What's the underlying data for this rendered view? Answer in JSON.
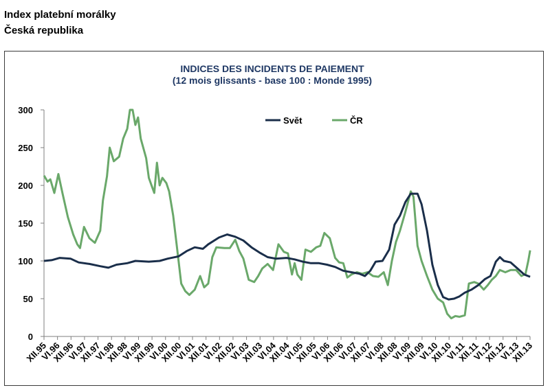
{
  "heading": {
    "line1": "Index platební morálky",
    "line2": "Česká republika"
  },
  "chart_data": {
    "type": "line",
    "title": "INDICES DES INCIDENTS DE PAIEMENT",
    "subtitle": "(12 mois glissants - base 100 : Monde 1995)",
    "ylim": [
      0,
      300
    ],
    "yticks": [
      0,
      50,
      100,
      150,
      200,
      250,
      300
    ],
    "xlim": [
      1995.917,
      2013.917
    ],
    "xtick_labels": [
      "XII.95",
      "VI.96",
      "XII.96",
      "VI.97",
      "XII.97",
      "VI.98",
      "XII.98",
      "VI.99",
      "XII.99",
      "VI.00",
      "XII.00",
      "VI.01",
      "XII.01",
      "VI.02",
      "XII.02",
      "VI.03",
      "XII.03",
      "VI.04",
      "XII.04",
      "VI.05",
      "XII.05",
      "VI.06",
      "XII.06",
      "VI.07",
      "XII.07",
      "VI.08",
      "XII.08",
      "VI.09",
      "XII.09",
      "VI.10",
      "XII.10",
      "VI.11",
      "XII.11",
      "VI.12",
      "XII.12",
      "VI.13",
      "XII.13"
    ],
    "grid": false,
    "legend_position": "top-center",
    "series": [
      {
        "name": "Svět",
        "color": "#1a2e4a",
        "points": [
          [
            1995.92,
            100
          ],
          [
            1996.2,
            101
          ],
          [
            1996.5,
            104
          ],
          [
            1996.9,
            103
          ],
          [
            1997.2,
            98
          ],
          [
            1997.6,
            96
          ],
          [
            1998.0,
            93
          ],
          [
            1998.3,
            91
          ],
          [
            1998.6,
            95
          ],
          [
            1999.0,
            97
          ],
          [
            1999.3,
            100
          ],
          [
            1999.8,
            99
          ],
          [
            2000.2,
            100
          ],
          [
            2000.5,
            103
          ],
          [
            2000.9,
            106
          ],
          [
            2001.2,
            113
          ],
          [
            2001.5,
            118
          ],
          [
            2001.8,
            116
          ],
          [
            2002.0,
            122
          ],
          [
            2002.4,
            131
          ],
          [
            2002.7,
            135
          ],
          [
            2003.0,
            132
          ],
          [
            2003.3,
            127
          ],
          [
            2003.6,
            118
          ],
          [
            2003.9,
            111
          ],
          [
            2004.2,
            105
          ],
          [
            2004.5,
            103
          ],
          [
            2004.9,
            104
          ],
          [
            2005.2,
            102
          ],
          [
            2005.5,
            99
          ],
          [
            2005.8,
            97
          ],
          [
            2006.1,
            97
          ],
          [
            2006.4,
            95
          ],
          [
            2006.7,
            92
          ],
          [
            2007.0,
            87
          ],
          [
            2007.3,
            85
          ],
          [
            2007.6,
            83
          ],
          [
            2007.8,
            80
          ],
          [
            2008.0,
            87
          ],
          [
            2008.2,
            99
          ],
          [
            2008.45,
            100
          ],
          [
            2008.7,
            115
          ],
          [
            2008.9,
            148
          ],
          [
            2009.1,
            160
          ],
          [
            2009.3,
            178
          ],
          [
            2009.5,
            189
          ],
          [
            2009.75,
            189
          ],
          [
            2009.9,
            175
          ],
          [
            2010.1,
            140
          ],
          [
            2010.3,
            95
          ],
          [
            2010.5,
            68
          ],
          [
            2010.7,
            52
          ],
          [
            2010.9,
            49
          ],
          [
            2011.1,
            50
          ],
          [
            2011.3,
            53
          ],
          [
            2011.5,
            58
          ],
          [
            2011.75,
            62
          ],
          [
            2012.0,
            68
          ],
          [
            2012.25,
            76
          ],
          [
            2012.45,
            80
          ],
          [
            2012.65,
            99
          ],
          [
            2012.8,
            105
          ],
          [
            2012.95,
            100
          ],
          [
            2013.2,
            98
          ],
          [
            2013.45,
            90
          ],
          [
            2013.7,
            82
          ],
          [
            2013.92,
            79
          ]
        ]
      },
      {
        "name": "ČR",
        "color": "#6aa86a",
        "points": [
          [
            1995.92,
            213
          ],
          [
            1996.05,
            205
          ],
          [
            1996.15,
            208
          ],
          [
            1996.3,
            190
          ],
          [
            1996.45,
            215
          ],
          [
            1996.6,
            190
          ],
          [
            1996.8,
            158
          ],
          [
            1997.0,
            135
          ],
          [
            1997.15,
            122
          ],
          [
            1997.25,
            117
          ],
          [
            1997.4,
            145
          ],
          [
            1997.6,
            130
          ],
          [
            1997.8,
            124
          ],
          [
            1998.0,
            140
          ],
          [
            1998.1,
            180
          ],
          [
            1998.25,
            212
          ],
          [
            1998.35,
            250
          ],
          [
            1998.5,
            232
          ],
          [
            1998.7,
            238
          ],
          [
            1998.85,
            262
          ],
          [
            1999.0,
            275
          ],
          [
            1999.1,
            300
          ],
          [
            1999.2,
            300
          ],
          [
            1999.3,
            280
          ],
          [
            1999.4,
            290
          ],
          [
            1999.5,
            262
          ],
          [
            1999.7,
            236
          ],
          [
            1999.8,
            210
          ],
          [
            1999.9,
            200
          ],
          [
            2000.0,
            190
          ],
          [
            2000.1,
            230
          ],
          [
            2000.2,
            200
          ],
          [
            2000.3,
            210
          ],
          [
            2000.45,
            203
          ],
          [
            2000.55,
            192
          ],
          [
            2000.7,
            160
          ],
          [
            2000.85,
            115
          ],
          [
            2001.0,
            70
          ],
          [
            2001.15,
            60
          ],
          [
            2001.3,
            55
          ],
          [
            2001.5,
            62
          ],
          [
            2001.7,
            80
          ],
          [
            2001.85,
            65
          ],
          [
            2002.0,
            70
          ],
          [
            2002.15,
            105
          ],
          [
            2002.3,
            118
          ],
          [
            2002.6,
            117
          ],
          [
            2002.8,
            117
          ],
          [
            2003.0,
            128
          ],
          [
            2003.15,
            113
          ],
          [
            2003.3,
            103
          ],
          [
            2003.5,
            75
          ],
          [
            2003.7,
            72
          ],
          [
            2003.85,
            80
          ],
          [
            2004.0,
            90
          ],
          [
            2004.2,
            96
          ],
          [
            2004.4,
            88
          ],
          [
            2004.6,
            122
          ],
          [
            2004.8,
            112
          ],
          [
            2004.95,
            110
          ],
          [
            2005.1,
            82
          ],
          [
            2005.2,
            97
          ],
          [
            2005.3,
            82
          ],
          [
            2005.45,
            75
          ],
          [
            2005.6,
            115
          ],
          [
            2005.8,
            112
          ],
          [
            2006.0,
            118
          ],
          [
            2006.15,
            120
          ],
          [
            2006.3,
            137
          ],
          [
            2006.5,
            130
          ],
          [
            2006.7,
            104
          ],
          [
            2006.85,
            98
          ],
          [
            2007.0,
            97
          ],
          [
            2007.15,
            78
          ],
          [
            2007.3,
            82
          ],
          [
            2007.5,
            85
          ],
          [
            2007.7,
            83
          ],
          [
            2007.9,
            85
          ],
          [
            2008.1,
            80
          ],
          [
            2008.3,
            79
          ],
          [
            2008.5,
            85
          ],
          [
            2008.65,
            68
          ],
          [
            2008.8,
            100
          ],
          [
            2008.95,
            125
          ],
          [
            2009.1,
            140
          ],
          [
            2009.3,
            165
          ],
          [
            2009.5,
            192
          ],
          [
            2009.6,
            185
          ],
          [
            2009.75,
            120
          ],
          [
            2009.9,
            100
          ],
          [
            2010.1,
            80
          ],
          [
            2010.3,
            62
          ],
          [
            2010.5,
            50
          ],
          [
            2010.7,
            45
          ],
          [
            2010.85,
            30
          ],
          [
            2011.0,
            24
          ],
          [
            2011.15,
            27
          ],
          [
            2011.3,
            26
          ],
          [
            2011.5,
            28
          ],
          [
            2011.65,
            70
          ],
          [
            2011.85,
            72
          ],
          [
            2012.0,
            70
          ],
          [
            2012.2,
            62
          ],
          [
            2012.35,
            68
          ],
          [
            2012.5,
            75
          ],
          [
            2012.65,
            80
          ],
          [
            2012.8,
            88
          ],
          [
            2013.0,
            85
          ],
          [
            2013.2,
            88
          ],
          [
            2013.4,
            88
          ],
          [
            2013.6,
            80
          ],
          [
            2013.75,
            83
          ],
          [
            2013.85,
            100
          ],
          [
            2013.92,
            114
          ]
        ]
      }
    ]
  }
}
